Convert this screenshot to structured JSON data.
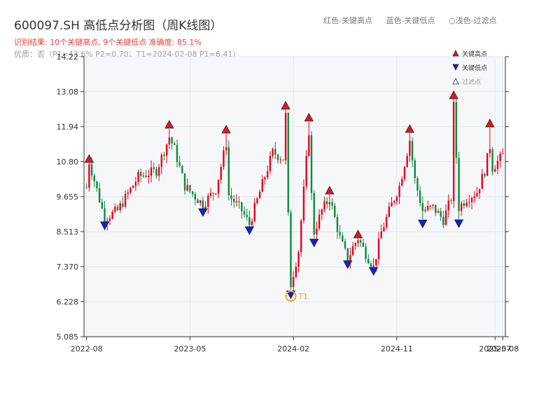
{
  "header": {
    "title": "600097.SH 高低点分析图（周K线图）",
    "result": "识别结果: 10个关键高点, 9个关键低点   准确度: 85.1%",
    "quality": "优质：否（P1=43.6%  P2=0.70；T1=2024-02-08 P1=6.41）"
  },
  "legend_top": {
    "red": "红色-关键高点",
    "blue": "蓝色-关键低点",
    "hollow": "○浅色-过滤点"
  },
  "legend_markers": {
    "high": "关键高点",
    "low": "关键低点",
    "filtered": "过滤点"
  },
  "colors": {
    "up": "#e6001c",
    "down": "#0a8a3a",
    "high_marker": "#e8141c",
    "low_marker": "#1020d8",
    "t1": "#f5a623",
    "axis": "#333333",
    "plot_bg": "#f6f7f9"
  },
  "chart_data": {
    "type": "candlestick",
    "y_ticks": [
      "5.085",
      "6.228",
      "7.370",
      "8.513",
      "9.655",
      "10.80",
      "11.94",
      "13.08",
      "14.22"
    ],
    "y_range": [
      5.085,
      14.22
    ],
    "x_ticks": [
      {
        "label": "2022-08",
        "week": 0
      },
      {
        "label": "2023-05",
        "week": 40
      },
      {
        "label": "2024-02",
        "week": 80
      },
      {
        "label": "2024-11",
        "week": 120
      },
      {
        "label": "2025-07",
        "week": 158
      },
      {
        "label": "2025-08",
        "week": 161
      }
    ],
    "x_range": [
      -1,
      162
    ],
    "key_points": [
      {
        "type": "high",
        "week": 1,
        "price": 10.86
      },
      {
        "type": "low",
        "week": 7,
        "price": 8.74
      },
      {
        "type": "high",
        "week": 32,
        "price": 11.98
      },
      {
        "type": "low",
        "week": 45,
        "price": 9.17
      },
      {
        "type": "high",
        "week": 54,
        "price": 11.82
      },
      {
        "type": "low",
        "week": 63,
        "price": 8.58
      },
      {
        "type": "high",
        "week": 77,
        "price": 12.6
      },
      {
        "type": "low",
        "week": 79,
        "price": 6.49
      },
      {
        "type": "high",
        "week": 86,
        "price": 12.21
      },
      {
        "type": "low",
        "week": 88,
        "price": 8.18
      },
      {
        "type": "high",
        "week": 94,
        "price": 9.83
      },
      {
        "type": "low",
        "week": 101,
        "price": 7.47
      },
      {
        "type": "high",
        "week": 105,
        "price": 8.4
      },
      {
        "type": "low",
        "week": 111,
        "price": 7.25
      },
      {
        "type": "high",
        "week": 125,
        "price": 11.84
      },
      {
        "type": "low",
        "week": 130,
        "price": 8.8
      },
      {
        "type": "high",
        "week": 142,
        "price": 12.94
      },
      {
        "type": "low",
        "week": 144,
        "price": 8.81
      },
      {
        "type": "high",
        "week": 156,
        "price": 12.02
      }
    ],
    "t1": {
      "label": "T1",
      "week": 79,
      "price": 6.41
    },
    "anchors": [
      [
        0,
        9.95
      ],
      [
        1,
        10.8
      ],
      [
        7,
        8.95
      ],
      [
        12,
        9.2
      ],
      [
        20,
        10.3
      ],
      [
        27,
        10.5
      ],
      [
        32,
        11.6
      ],
      [
        34,
        11.2
      ],
      [
        38,
        10.0
      ],
      [
        45,
        9.4
      ],
      [
        50,
        9.9
      ],
      [
        54,
        11.4
      ],
      [
        55,
        9.7
      ],
      [
        60,
        9.2
      ],
      [
        63,
        8.75
      ],
      [
        67,
        9.8
      ],
      [
        72,
        11.1
      ],
      [
        76,
        10.9
      ],
      [
        77,
        12.3
      ],
      [
        78,
        9.0
      ],
      [
        79,
        6.8
      ],
      [
        82,
        7.9
      ],
      [
        86,
        11.8
      ],
      [
        87,
        9.7
      ],
      [
        88,
        8.5
      ],
      [
        91,
        9.2
      ],
      [
        94,
        9.6
      ],
      [
        98,
        8.3
      ],
      [
        101,
        7.6
      ],
      [
        103,
        8.0
      ],
      [
        105,
        8.3
      ],
      [
        108,
        7.8
      ],
      [
        111,
        7.35
      ],
      [
        114,
        8.5
      ],
      [
        118,
        9.4
      ],
      [
        121,
        10.0
      ],
      [
        125,
        11.5
      ],
      [
        127,
        10.2
      ],
      [
        130,
        9.2
      ],
      [
        134,
        9.3
      ],
      [
        138,
        8.9
      ],
      [
        141,
        9.6
      ],
      [
        142,
        12.6
      ],
      [
        144,
        9.3
      ],
      [
        147,
        9.6
      ],
      [
        151,
        9.8
      ],
      [
        154,
        10.5
      ],
      [
        156,
        11.3
      ],
      [
        157,
        10.6
      ],
      [
        161,
        11.0
      ]
    ]
  }
}
